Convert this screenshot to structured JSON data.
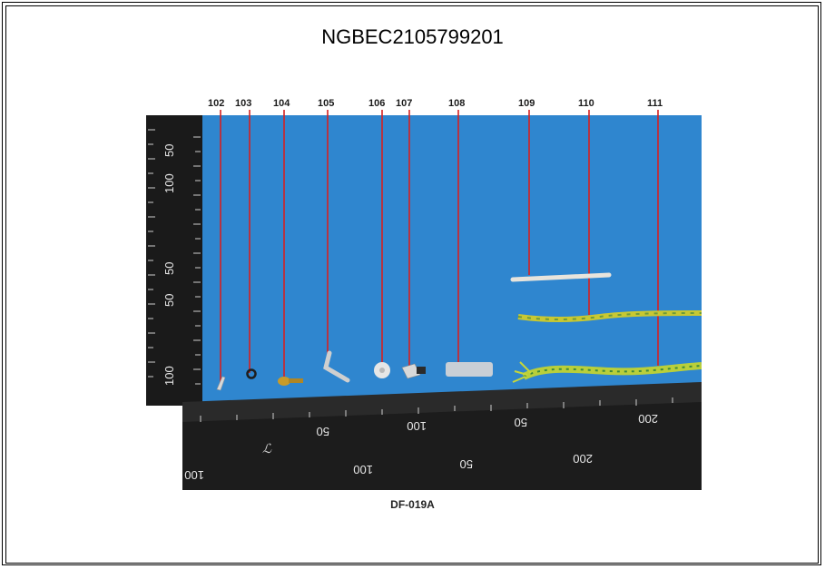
{
  "document": {
    "title": "NGBEC2105799201",
    "caption": "DF-019A"
  },
  "photo": {
    "labels": [
      "102",
      "103",
      "104",
      "105",
      "106",
      "107",
      "108",
      "109",
      "110",
      "111"
    ],
    "ruler_numbers": [
      "50",
      "100",
      "200",
      "50",
      "100",
      "200",
      "50",
      "100",
      "50",
      "100"
    ],
    "colors": {
      "background": "#2f86cf",
      "ruler": "#1a1a1a",
      "leader_line": "#d62020",
      "wire_yellow_green": "#c8c832"
    }
  }
}
